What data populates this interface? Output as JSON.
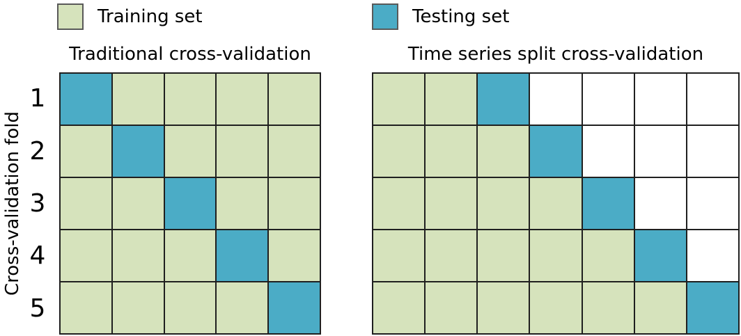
{
  "colors": {
    "train": "#d6e3bc",
    "test": "#4bacc6",
    "empty": "#ffffff",
    "grid_line": "#1f1f1f",
    "swatch_border": "#595959"
  },
  "legend": {
    "items": [
      {
        "key": "train",
        "label": "Training set"
      },
      {
        "key": "test",
        "label": "Testing set"
      }
    ]
  },
  "axis": {
    "label": "Cross-validation fold",
    "folds": [
      "1",
      "2",
      "3",
      "4",
      "5"
    ]
  },
  "charts": [
    {
      "title": "Traditional cross-validation",
      "columns": 5,
      "rows": [
        [
          "test",
          "train",
          "train",
          "train",
          "train"
        ],
        [
          "train",
          "test",
          "train",
          "train",
          "train"
        ],
        [
          "train",
          "train",
          "test",
          "train",
          "train"
        ],
        [
          "train",
          "train",
          "train",
          "test",
          "train"
        ],
        [
          "train",
          "train",
          "train",
          "train",
          "test"
        ]
      ]
    },
    {
      "title": "Time series split cross-validation",
      "columns": 7,
      "rows": [
        [
          "train",
          "train",
          "test",
          "empty",
          "empty",
          "empty",
          "empty"
        ],
        [
          "train",
          "train",
          "train",
          "test",
          "empty",
          "empty",
          "empty"
        ],
        [
          "train",
          "train",
          "train",
          "train",
          "test",
          "empty",
          "empty"
        ],
        [
          "train",
          "train",
          "train",
          "train",
          "train",
          "test",
          "empty"
        ],
        [
          "train",
          "train",
          "train",
          "train",
          "train",
          "train",
          "test"
        ]
      ]
    }
  ]
}
